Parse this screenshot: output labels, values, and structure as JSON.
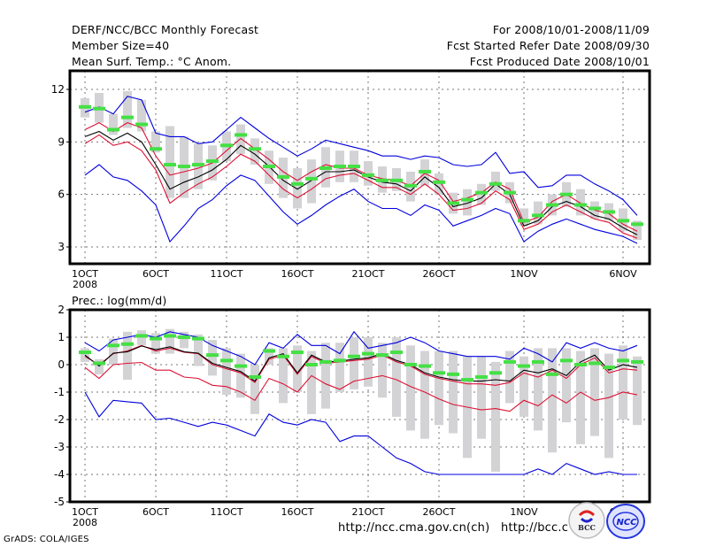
{
  "header": {
    "left": [
      "DERF/NCC/BCC Monthly Forecast",
      "Member Size=40",
      "Mean Surf. Temp.: °C Anom."
    ],
    "right": [
      "For 2008/10/01-2008/11/09",
      "Fcst Started Refer Date 2008/09/30",
      "Fcst Produced Date 2008/10/01"
    ]
  },
  "footer": {
    "credit": "GrADS: COLA/IGES",
    "url1": "http://ncc.cma.gov.cn(ch)",
    "url2": "http://bcc.c",
    "logo1": "BCC",
    "logo2": "NCC"
  },
  "colors": {
    "envelope": "#0000dd",
    "spread": "#dd1133",
    "mean": "#000000",
    "bar": "#d3d3d6",
    "marker": "#44e044"
  },
  "chart_data": [
    {
      "type": "line",
      "title": "Mean Surf. Temp.: °C Anom.",
      "xlabel": "",
      "ylabel": "",
      "x_tick_labels": [
        "1OCT",
        "6OCT",
        "11OCT",
        "16OCT",
        "21OCT",
        "26OCT",
        "1NOV",
        "6NOV"
      ],
      "x_tick_days": [
        1,
        6,
        11,
        16,
        21,
        26,
        32,
        39
      ],
      "x_year_label": "2008",
      "y_ticks": [
        3,
        6,
        9,
        12
      ],
      "ylim": [
        1.8,
        13.1
      ],
      "grid": true,
      "x": [
        1,
        2,
        3,
        4,
        5,
        6,
        7,
        8,
        9,
        10,
        11,
        12,
        13,
        14,
        15,
        16,
        17,
        18,
        19,
        20,
        21,
        22,
        23,
        24,
        25,
        26,
        27,
        28,
        29,
        30,
        31,
        32,
        33,
        34,
        35,
        36,
        37,
        38,
        39,
        40
      ],
      "series": [
        {
          "name": "max",
          "values": [
            10.7,
            11.0,
            10.6,
            11.6,
            11.4,
            9.5,
            9.3,
            9.3,
            8.9,
            9.0,
            9.7,
            10.4,
            9.8,
            9.2,
            8.7,
            8.2,
            8.6,
            9.1,
            8.9,
            8.7,
            8.5,
            8.2,
            8.2,
            8.0,
            8.2,
            8.1,
            7.7,
            7.6,
            7.7,
            8.4,
            7.2,
            7.3,
            6.4,
            6.5,
            7.1,
            7.1,
            6.6,
            6.2,
            5.7,
            4.8
          ]
        },
        {
          "name": "upper",
          "values": [
            9.7,
            10.1,
            9.6,
            10.1,
            9.8,
            8.2,
            7.1,
            7.3,
            7.5,
            7.8,
            8.5,
            9.2,
            8.6,
            8.0,
            7.3,
            6.8,
            7.3,
            7.7,
            7.5,
            7.5,
            7.1,
            6.9,
            6.8,
            6.5,
            7.2,
            6.8,
            5.6,
            5.8,
            6.1,
            6.7,
            6.3,
            4.4,
            4.7,
            5.6,
            6.0,
            5.5,
            5.1,
            4.9,
            4.3,
            3.9
          ]
        },
        {
          "name": "mean",
          "values": [
            9.3,
            9.6,
            9.1,
            9.5,
            9.0,
            7.7,
            6.3,
            6.7,
            7.0,
            7.4,
            8.0,
            8.8,
            8.3,
            7.6,
            6.8,
            6.3,
            6.8,
            7.3,
            7.3,
            7.4,
            7.0,
            6.7,
            6.6,
            6.2,
            7.0,
            6.4,
            5.3,
            5.5,
            5.8,
            6.6,
            6.0,
            4.2,
            4.5,
            5.3,
            5.6,
            5.3,
            4.8,
            4.6,
            4.1,
            3.7
          ]
        },
        {
          "name": "lower",
          "values": [
            8.9,
            9.4,
            8.8,
            9.0,
            8.5,
            7.4,
            5.5,
            6.1,
            6.6,
            7.0,
            7.6,
            8.3,
            7.9,
            7.1,
            6.3,
            5.8,
            6.3,
            6.9,
            7.1,
            7.2,
            6.8,
            6.4,
            6.4,
            6.0,
            6.6,
            6.0,
            5.1,
            5.2,
            5.5,
            6.2,
            5.7,
            4.0,
            4.3,
            5.0,
            5.4,
            5.0,
            4.6,
            4.4,
            3.8,
            3.5
          ]
        },
        {
          "name": "min",
          "values": [
            7.1,
            7.7,
            7.0,
            6.8,
            6.2,
            5.4,
            3.3,
            4.2,
            5.2,
            5.7,
            6.5,
            7.1,
            6.8,
            5.9,
            5.0,
            4.3,
            4.8,
            5.4,
            5.9,
            6.3,
            5.6,
            5.2,
            5.2,
            4.8,
            5.4,
            5.1,
            4.2,
            4.5,
            4.8,
            5.2,
            4.9,
            3.3,
            3.9,
            4.3,
            4.6,
            4.3,
            4.0,
            3.8,
            3.6,
            3.2
          ]
        },
        {
          "name": "ens_marker",
          "values": [
            11.0,
            10.9,
            9.7,
            10.4,
            10.0,
            8.6,
            7.7,
            7.6,
            7.7,
            7.9,
            8.8,
            9.4,
            8.6,
            7.6,
            7.0,
            6.6,
            6.9,
            7.5,
            7.6,
            7.6,
            7.1,
            6.8,
            6.8,
            6.5,
            7.3,
            6.7,
            5.5,
            5.7,
            6.1,
            6.6,
            6.1,
            4.5,
            4.8,
            5.4,
            6.0,
            5.4,
            5.2,
            5.0,
            4.5,
            4.3
          ]
        },
        {
          "name": "bar_top",
          "values": [
            11.5,
            11.8,
            10.6,
            11.9,
            11.4,
            9.6,
            9.9,
            9.3,
            8.9,
            8.8,
            9.6,
            10.0,
            9.2,
            8.5,
            8.1,
            7.5,
            8.0,
            8.7,
            8.5,
            8.5,
            7.9,
            7.6,
            7.5,
            7.3,
            8.0,
            7.2,
            6.1,
            6.3,
            6.6,
            7.3,
            6.7,
            5.2,
            5.6,
            6.0,
            6.7,
            6.3,
            5.6,
            5.5,
            5.2,
            4.5
          ]
        },
        {
          "name": "bar_bottom",
          "values": [
            10.4,
            10.1,
            9.4,
            9.8,
            9.6,
            8.4,
            5.8,
            5.8,
            6.3,
            6.8,
            7.9,
            8.3,
            7.7,
            6.6,
            5.8,
            5.2,
            5.5,
            6.4,
            6.7,
            6.7,
            6.5,
            6.1,
            6.2,
            5.6,
            6.5,
            6.0,
            4.9,
            4.8,
            5.4,
            6.2,
            5.5,
            4.2,
            4.3,
            4.8,
            5.3,
            4.8,
            4.6,
            4.5,
            3.9,
            3.4
          ]
        }
      ]
    },
    {
      "type": "line",
      "title": "Prec.: log(mm/d)",
      "xlabel": "",
      "ylabel": "",
      "x_tick_labels": [
        "1OCT",
        "6OCT",
        "11OCT",
        "16OCT",
        "21OCT",
        "26OCT",
        "1NOV",
        "6NOV"
      ],
      "x_tick_days": [
        1,
        6,
        11,
        16,
        21,
        26,
        32,
        39
      ],
      "x_year_label": "2008",
      "y_ticks": [
        -5,
        -4,
        -3,
        -2,
        -1,
        0,
        1,
        2
      ],
      "ylim": [
        -5,
        2
      ],
      "grid": true,
      "x": [
        1,
        2,
        3,
        4,
        5,
        6,
        7,
        8,
        9,
        10,
        11,
        12,
        13,
        14,
        15,
        16,
        17,
        18,
        19,
        20,
        21,
        22,
        23,
        24,
        25,
        26,
        27,
        28,
        29,
        30,
        31,
        32,
        33,
        34,
        35,
        36,
        37,
        38,
        39,
        40
      ],
      "series": [
        {
          "name": "max",
          "values": [
            0.8,
            0.5,
            0.9,
            1.0,
            1.1,
            1.0,
            1.2,
            1.1,
            1.0,
            0.7,
            0.5,
            0.3,
            0.0,
            0.8,
            0.6,
            1.1,
            0.7,
            0.7,
            0.4,
            1.2,
            0.6,
            0.7,
            0.8,
            1.0,
            0.8,
            0.5,
            0.4,
            0.3,
            0.3,
            0.3,
            0.2,
            0.6,
            0.4,
            0.1,
            0.8,
            0.6,
            0.8,
            0.6,
            0.5,
            0.7
          ]
        },
        {
          "name": "mean",
          "values": [
            0.35,
            -0.05,
            0.42,
            0.47,
            0.68,
            0.55,
            0.65,
            0.47,
            0.42,
            0.05,
            -0.1,
            -0.25,
            -0.6,
            0.25,
            0.4,
            -0.3,
            0.35,
            0.1,
            0.13,
            0.2,
            0.25,
            0.4,
            0.15,
            0.0,
            -0.3,
            -0.45,
            -0.55,
            -0.6,
            -0.6,
            -0.55,
            -0.6,
            -0.2,
            -0.3,
            -0.15,
            -0.4,
            0.1,
            0.35,
            -0.2,
            0.0,
            -0.1
          ]
        },
        {
          "name": "upper",
          "values": [
            0.3,
            0.0,
            0.4,
            0.5,
            0.7,
            0.5,
            0.6,
            0.45,
            0.4,
            0.0,
            -0.15,
            -0.3,
            -0.65,
            0.2,
            0.35,
            -0.35,
            0.3,
            0.05,
            0.1,
            0.15,
            0.2,
            0.35,
            0.1,
            -0.05,
            -0.35,
            -0.5,
            -0.6,
            -0.7,
            -0.7,
            -0.75,
            -0.65,
            -0.3,
            -0.45,
            -0.2,
            -0.5,
            0.0,
            0.25,
            -0.3,
            -0.15,
            -0.2
          ]
        },
        {
          "name": "lower",
          "values": [
            -0.1,
            -0.5,
            0.0,
            0.05,
            0.08,
            -0.2,
            -0.2,
            -0.45,
            -0.5,
            -0.75,
            -0.8,
            -1.0,
            -1.3,
            -0.5,
            -0.7,
            -1.0,
            -0.4,
            -0.7,
            -0.9,
            -0.6,
            -0.5,
            -0.4,
            -0.55,
            -0.8,
            -1.0,
            -1.25,
            -1.45,
            -1.55,
            -1.65,
            -1.6,
            -1.7,
            -1.3,
            -1.5,
            -1.1,
            -1.4,
            -1.0,
            -1.3,
            -1.2,
            -1.0,
            -1.1
          ]
        },
        {
          "name": "min",
          "values": [
            -1.0,
            -1.9,
            -1.3,
            -1.35,
            -1.4,
            -2.0,
            -1.95,
            -2.1,
            -2.25,
            -2.1,
            -2.2,
            -2.4,
            -2.6,
            -1.8,
            -2.1,
            -2.2,
            -2.0,
            -2.1,
            -2.8,
            -2.6,
            -2.6,
            -3.0,
            -3.4,
            -3.6,
            -3.9,
            -4.0,
            -4.0,
            -4.0,
            -4.0,
            -4.0,
            -4.0,
            -4.0,
            -3.8,
            -4.0,
            -3.6,
            -3.8,
            -4.0,
            -3.9,
            -4.0,
            -4.0
          ]
        },
        {
          "name": "ens_marker",
          "values": [
            0.45,
            0.05,
            0.7,
            0.75,
            1.05,
            0.95,
            1.05,
            1.0,
            0.95,
            0.35,
            0.15,
            -0.05,
            -0.45,
            0.5,
            0.3,
            0.45,
            0.0,
            0.1,
            0.15,
            0.3,
            0.4,
            0.35,
            0.45,
            0.0,
            -0.05,
            -0.3,
            -0.35,
            -0.55,
            -0.45,
            -0.3,
            0.1,
            -0.05,
            0.1,
            -0.35,
            0.15,
            0.0,
            0.05,
            -0.1,
            0.15,
            0.1
          ]
        },
        {
          "name": "bar_top",
          "values": [
            0.6,
            0.2,
            0.95,
            1.2,
            1.25,
            1.15,
            1.3,
            1.2,
            1.1,
            0.9,
            0.6,
            0.4,
            0.0,
            0.6,
            0.6,
            0.7,
            0.5,
            0.8,
            0.8,
            1.0,
            1.0,
            0.8,
            1.0,
            0.7,
            0.5,
            0.5,
            0.5,
            0.3,
            0.3,
            0.1,
            0.5,
            0.3,
            0.6,
            0.6,
            0.6,
            0.5,
            0.6,
            0.4,
            0.7,
            0.3
          ]
        },
        {
          "name": "bar_bottom",
          "values": [
            0.1,
            -0.35,
            0.0,
            -0.55,
            0.7,
            0.4,
            0.4,
            0.6,
            -0.05,
            -0.4,
            -1.1,
            -1.2,
            -1.8,
            0.0,
            -1.4,
            -1.0,
            -1.8,
            -1.6,
            -1.0,
            -0.9,
            -0.8,
            -1.2,
            -1.9,
            -2.4,
            -2.7,
            -2.2,
            -2.5,
            -3.4,
            -2.7,
            -3.9,
            -1.4,
            -1.9,
            -2.4,
            -3.2,
            -2.1,
            -2.9,
            -2.6,
            -3.4,
            -2.0,
            -2.2
          ]
        }
      ]
    }
  ]
}
